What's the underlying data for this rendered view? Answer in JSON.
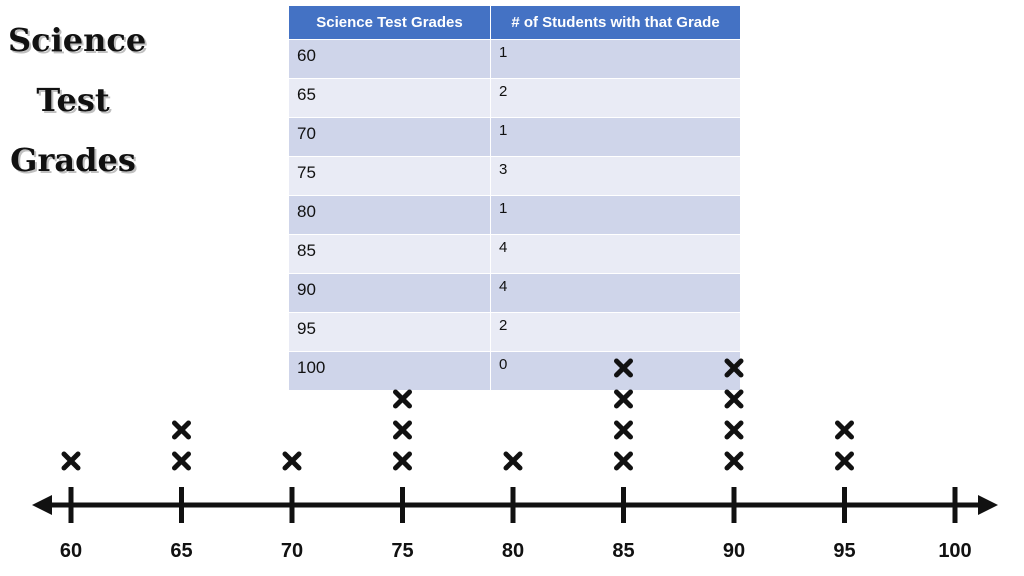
{
  "title": [
    "Science",
    "Test",
    "Grades"
  ],
  "table": {
    "headers": [
      "Science Test Grades",
      "# of Students with that Grade"
    ],
    "rows": [
      {
        "grade": "60",
        "count": "1"
      },
      {
        "grade": "65",
        "count": "2"
      },
      {
        "grade": "70",
        "count": "1"
      },
      {
        "grade": "75",
        "count": "3"
      },
      {
        "grade": "80",
        "count": "1"
      },
      {
        "grade": "85",
        "count": "4"
      },
      {
        "grade": "90",
        "count": "4"
      },
      {
        "grade": "95",
        "count": "2"
      },
      {
        "grade": "100",
        "count": "0"
      }
    ]
  },
  "chart_data": {
    "type": "scatter",
    "subtype": "line plot (dot plot)",
    "marker": "x",
    "x": [
      60,
      65,
      70,
      75,
      80,
      85,
      90,
      95,
      100
    ],
    "tick_labels": [
      "60",
      "65",
      "70",
      "75",
      "80",
      "85",
      "90",
      "95",
      "100"
    ],
    "values": [
      1,
      2,
      1,
      3,
      1,
      4,
      4,
      2,
      0
    ],
    "xlim": [
      60,
      100
    ]
  },
  "colors": {
    "header": "#4472c4",
    "row_dark": "#cfd5ea",
    "row_light": "#e9ebf5",
    "axis": "#111111"
  }
}
